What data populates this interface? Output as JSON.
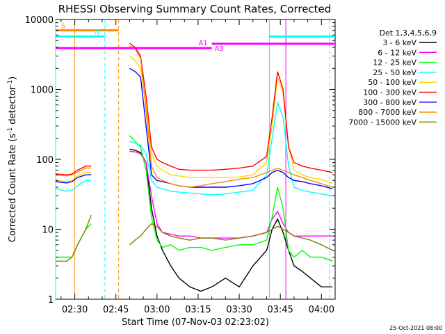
{
  "chart_data": {
    "type": "line",
    "title": "RHESSI Observing Summary Count Rates, Corrected",
    "xlabel": "Start Time (07-Nov-03 02:23:02)",
    "ylabel_pre": "Corrected Count Rate (s",
    "ylabel_sup": "-1",
    "ylabel_mid": " detector",
    "ylabel_post": ")",
    "yscale": "log",
    "ylim": [
      1,
      10000
    ],
    "xlim_minutes": [
      -7.0,
      95.0
    ],
    "x_ticks": [
      {
        "label": "02:30",
        "t": 0
      },
      {
        "label": "02:45",
        "t": 15
      },
      {
        "label": "03:00",
        "t": 30
      },
      {
        "label": "03:15",
        "t": 45
      },
      {
        "label": "03:30",
        "t": 60
      },
      {
        "label": "03:45",
        "t": 75
      },
      {
        "label": "04:00",
        "t": 90
      }
    ],
    "y_ticks": [
      {
        "label": "1",
        "v": 1
      },
      {
        "label": "10",
        "v": 10
      },
      {
        "label": "100",
        "v": 100
      },
      {
        "label": "1000",
        "v": 1000
      },
      {
        "label": "10000",
        "v": 10000
      }
    ],
    "legend_title": "Det 1,3,4,5,6,9",
    "legend_placement": "right",
    "footer": "25-Oct-2021 08:00",
    "series": [
      {
        "name": "3 - 6 keV",
        "color": "#000000",
        "x": [
          -7,
          -3,
          -1,
          1,
          4,
          6,
          8,
          10,
          12,
          14,
          16.5,
          18,
          20,
          22,
          24,
          26,
          28,
          30,
          32,
          35,
          38,
          42,
          46,
          50,
          55,
          60,
          65,
          70,
          72,
          74,
          76,
          78,
          80,
          83,
          86,
          90,
          94
        ],
        "y": [
          null,
          null,
          null,
          null,
          null,
          null,
          null,
          null,
          null,
          null,
          null,
          null,
          140,
          135,
          125,
          90,
          20,
          8,
          5,
          3,
          2,
          1.5,
          1.3,
          1.5,
          2,
          1.5,
          3,
          5,
          10,
          14,
          9,
          5,
          3,
          2.5,
          2,
          1.5,
          1.5
        ]
      },
      {
        "name": "6 - 12 keV",
        "color": "#ff00ff",
        "x": [
          -7,
          -3,
          -1,
          1,
          4,
          6,
          8,
          10,
          12,
          14,
          16.5,
          18,
          20,
          22,
          24,
          26,
          28,
          30,
          32,
          35,
          38,
          42,
          46,
          50,
          55,
          60,
          65,
          70,
          72,
          74,
          76,
          78,
          80,
          83,
          86,
          90,
          94
        ],
        "y": [
          null,
          null,
          null,
          null,
          null,
          null,
          null,
          null,
          null,
          null,
          null,
          null,
          130,
          128,
          120,
          90,
          30,
          12,
          9,
          8.5,
          8,
          8,
          7.5,
          7.5,
          7.5,
          7.5,
          8,
          9,
          14,
          18,
          12,
          9,
          8,
          8,
          8,
          8,
          8
        ]
      },
      {
        "name": "12 - 25 keV",
        "color": "#00ff00",
        "x": [
          -7,
          -3,
          -1,
          1,
          4,
          6,
          8,
          10,
          12,
          14,
          16.5,
          18,
          20,
          22,
          24,
          26,
          28,
          30,
          32,
          35,
          38,
          42,
          46,
          50,
          55,
          60,
          65,
          70,
          72,
          74,
          76,
          78,
          80,
          83,
          86,
          90,
          94
        ],
        "y": [
          4,
          4,
          4,
          6,
          10,
          12,
          null,
          null,
          null,
          null,
          null,
          null,
          220,
          180,
          150,
          70,
          15,
          7,
          5.5,
          6,
          5,
          5.5,
          5.5,
          5,
          5.5,
          6,
          6,
          7,
          15,
          40,
          20,
          5,
          4,
          5,
          4,
          4,
          3.5
        ]
      },
      {
        "name": "25 - 50 keV",
        "color": "#00ffff",
        "x": [
          -7,
          -3,
          -1,
          1,
          4,
          6,
          8,
          10,
          12,
          14,
          16.5,
          18,
          20,
          22,
          24,
          26,
          28,
          30,
          32,
          35,
          38,
          42,
          46,
          50,
          55,
          60,
          65,
          70,
          72,
          74,
          76,
          78,
          80,
          83,
          86,
          90,
          94
        ],
        "y": [
          38,
          35,
          36,
          42,
          50,
          50,
          null,
          null,
          null,
          null,
          null,
          null,
          180,
          170,
          160,
          120,
          50,
          40,
          38,
          35,
          34,
          33,
          32,
          31,
          32,
          34,
          36,
          60,
          200,
          650,
          400,
          80,
          40,
          36,
          34,
          32,
          30
        ]
      },
      {
        "name": "50 - 100 keV",
        "color": "#ffd700",
        "x": [
          -7,
          -3,
          -1,
          1,
          4,
          6,
          8,
          10,
          12,
          14,
          16.5,
          18,
          20,
          22,
          24,
          26,
          28,
          30,
          32,
          35,
          38,
          42,
          46,
          50,
          55,
          60,
          65,
          70,
          72,
          74,
          76,
          78,
          80,
          83,
          86,
          90,
          94
        ],
        "y": [
          50,
          48,
          50,
          58,
          65,
          65,
          null,
          null,
          null,
          null,
          null,
          null,
          3000,
          2600,
          2000,
          600,
          120,
          80,
          70,
          60,
          58,
          55,
          55,
          55,
          55,
          56,
          60,
          90,
          300,
          1500,
          900,
          150,
          70,
          60,
          55,
          52,
          45
        ]
      },
      {
        "name": "100 - 300 keV",
        "color": "#ff0000",
        "x": [
          -7,
          -3,
          -1,
          1,
          4,
          6,
          8,
          10,
          12,
          14,
          16.5,
          18,
          20,
          22,
          24,
          26,
          28,
          30,
          32,
          35,
          38,
          42,
          46,
          50,
          55,
          60,
          65,
          70,
          72,
          74,
          76,
          78,
          80,
          83,
          86,
          90,
          94
        ],
        "y": [
          62,
          60,
          62,
          70,
          80,
          80,
          null,
          null,
          null,
          null,
          null,
          null,
          4600,
          4000,
          3000,
          800,
          150,
          100,
          90,
          80,
          72,
          70,
          70,
          70,
          72,
          75,
          80,
          110,
          400,
          1800,
          1000,
          150,
          90,
          80,
          75,
          70,
          65
        ]
      },
      {
        "name": "300 - 800 keV",
        "color": "#0000ff",
        "x": [
          -7,
          -3,
          -1,
          1,
          4,
          6,
          8,
          10,
          12,
          14,
          16.5,
          18,
          20,
          22,
          24,
          26,
          28,
          30,
          32,
          35,
          38,
          42,
          46,
          50,
          55,
          60,
          65,
          70,
          72,
          74,
          76,
          78,
          80,
          83,
          86,
          90,
          94
        ],
        "y": [
          48,
          46,
          48,
          55,
          60,
          60,
          null,
          null,
          null,
          null,
          null,
          null,
          2000,
          1800,
          1500,
          300,
          60,
          50,
          48,
          45,
          42,
          40,
          40,
          40,
          40,
          42,
          45,
          55,
          65,
          70,
          65,
          55,
          50,
          48,
          45,
          42,
          38
        ]
      },
      {
        "name": "800 - 7000 keV",
        "color": "#ff8c00",
        "x": [
          -7,
          -3,
          -1,
          1,
          4,
          6,
          8,
          10,
          12,
          14,
          16.5,
          18,
          20,
          22,
          24,
          26,
          28,
          30,
          32,
          35,
          38,
          42,
          46,
          50,
          55,
          60,
          65,
          70,
          72,
          74,
          76,
          78,
          80,
          83,
          86,
          90,
          94
        ],
        "y": [
          60,
          58,
          60,
          66,
          75,
          75,
          null,
          null,
          null,
          null,
          null,
          null,
          4200,
          3800,
          2800,
          500,
          80,
          55,
          50,
          45,
          42,
          40,
          42,
          45,
          48,
          52,
          55,
          65,
          70,
          75,
          70,
          65,
          60,
          55,
          50,
          45,
          40
        ]
      },
      {
        "name": "7000 - 15000 keV",
        "color": "#808000",
        "x": [
          -7,
          -3,
          -1,
          1,
          4,
          6,
          8,
          10,
          12,
          14,
          16.5,
          18,
          20,
          22,
          24,
          26,
          28,
          30,
          32,
          35,
          38,
          42,
          46,
          50,
          55,
          60,
          65,
          70,
          72,
          74,
          76,
          78,
          80,
          83,
          86,
          90,
          94
        ],
        "y": [
          3.5,
          3.5,
          4,
          6,
          10,
          16,
          null,
          null,
          null,
          null,
          null,
          null,
          6,
          7,
          8,
          10,
          12,
          11,
          9,
          8,
          7.5,
          7,
          7.5,
          7.5,
          7,
          7.5,
          8,
          9,
          10,
          11,
          10,
          9,
          8,
          7.5,
          7,
          6,
          5
        ]
      }
    ],
    "annotation_bars": [
      {
        "label": "S",
        "color": "#ff8c00",
        "start": -7,
        "end": 16,
        "value": 7000
      },
      {
        "label": "N",
        "color": "#00ffff",
        "start": -7,
        "end": 11,
        "value": 5700
      },
      {
        "label": "N",
        "color": "#00ffff",
        "start": 71,
        "end": 95,
        "value": 5700
      },
      {
        "label": "A1",
        "color": "#ff00ff",
        "start": 50,
        "end": 95,
        "value": 4500
      },
      {
        "label": "A3",
        "color": "#ff00ff",
        "start": -7,
        "end": 50,
        "value": 3900
      }
    ],
    "annotation_labels": [
      "S",
      "N",
      "A1",
      "A3"
    ],
    "vertical_markers": [
      {
        "t": -7,
        "color": "#00ffff",
        "style": "solid"
      },
      {
        "t": 0,
        "color": "#ff8c00",
        "style": "solid"
      },
      {
        "t": 11,
        "color": "#00ffff",
        "style": "dashed"
      },
      {
        "t": 16,
        "color": "#ff8c00",
        "style": "dashed"
      },
      {
        "t": 71,
        "color": "#00ffff",
        "style": "solid"
      },
      {
        "t": 77,
        "color": "#ff00ff",
        "style": "solid"
      },
      {
        "t": 93,
        "color": "#00ffff",
        "style": "dashed"
      }
    ]
  }
}
